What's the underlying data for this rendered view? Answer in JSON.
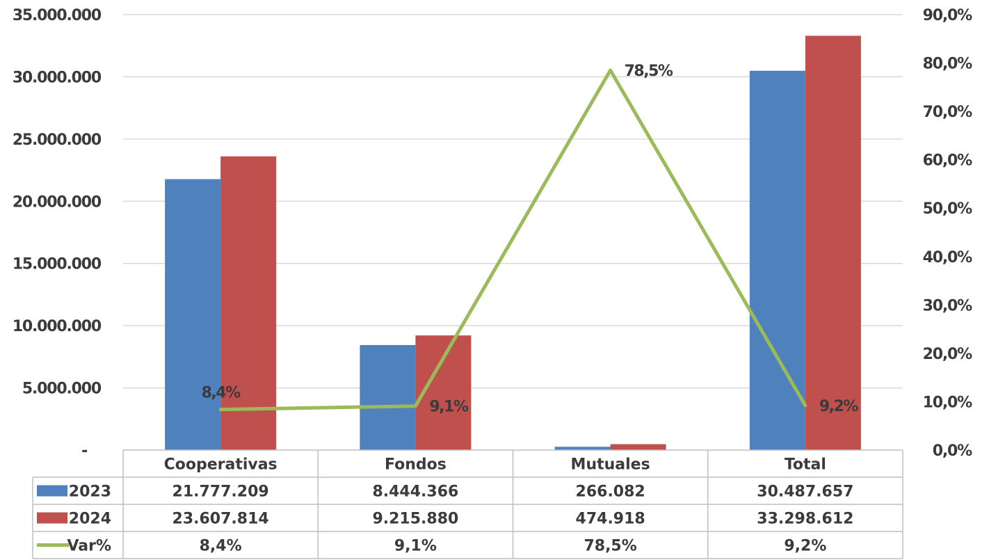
{
  "chart_data": {
    "type": "bar",
    "categories": [
      "Cooperativas",
      "Fondos",
      "Mutuales",
      "Total"
    ],
    "series": [
      {
        "name": "2023",
        "type": "bar",
        "axis": "left",
        "color": "#4f81bd",
        "values": [
          21777209,
          8444366,
          266082,
          30487657
        ]
      },
      {
        "name": "2024",
        "type": "bar",
        "axis": "left",
        "color": "#c0504d",
        "values": [
          23607814,
          9215880,
          474918,
          33298612
        ]
      },
      {
        "name": "Var%",
        "type": "line",
        "axis": "right",
        "color": "#9bbb59",
        "values": [
          8.4,
          9.1,
          78.5,
          9.2
        ]
      }
    ],
    "y_left": {
      "min": 0,
      "max": 35000000,
      "step": 5000000,
      "tick_labels": [
        "-",
        "5.000.000",
        "10.000.000",
        "15.000.000",
        "20.000.000",
        "25.000.000",
        "30.000.000",
        "35.000.000"
      ]
    },
    "y_right": {
      "min": 0,
      "max": 90,
      "step": 10,
      "tick_labels": [
        "0,0%",
        "10,0%",
        "20,0%",
        "30,0%",
        "40,0%",
        "50,0%",
        "60,0%",
        "70,0%",
        "80,0%",
        "90,0%"
      ]
    },
    "line_data_labels": [
      "8,4%",
      "9,1%",
      "78,5%",
      "9,2%"
    ],
    "grid": true,
    "legend": "data-table",
    "data_table": {
      "rows": [
        {
          "label": "2023",
          "color": "#4f81bd",
          "marker": "box",
          "cells": [
            "21.777.209",
            "8.444.366",
            "266.082",
            "30.487.657"
          ]
        },
        {
          "label": "2024",
          "color": "#c0504d",
          "marker": "box",
          "cells": [
            "23.607.814",
            "9.215.880",
            "474.918",
            "33.298.612"
          ]
        },
        {
          "label": "Var%",
          "color": "#9bbb59",
          "marker": "line",
          "cells": [
            "8,4%",
            "9,1%",
            "78,5%",
            "9,2%"
          ]
        }
      ]
    }
  }
}
